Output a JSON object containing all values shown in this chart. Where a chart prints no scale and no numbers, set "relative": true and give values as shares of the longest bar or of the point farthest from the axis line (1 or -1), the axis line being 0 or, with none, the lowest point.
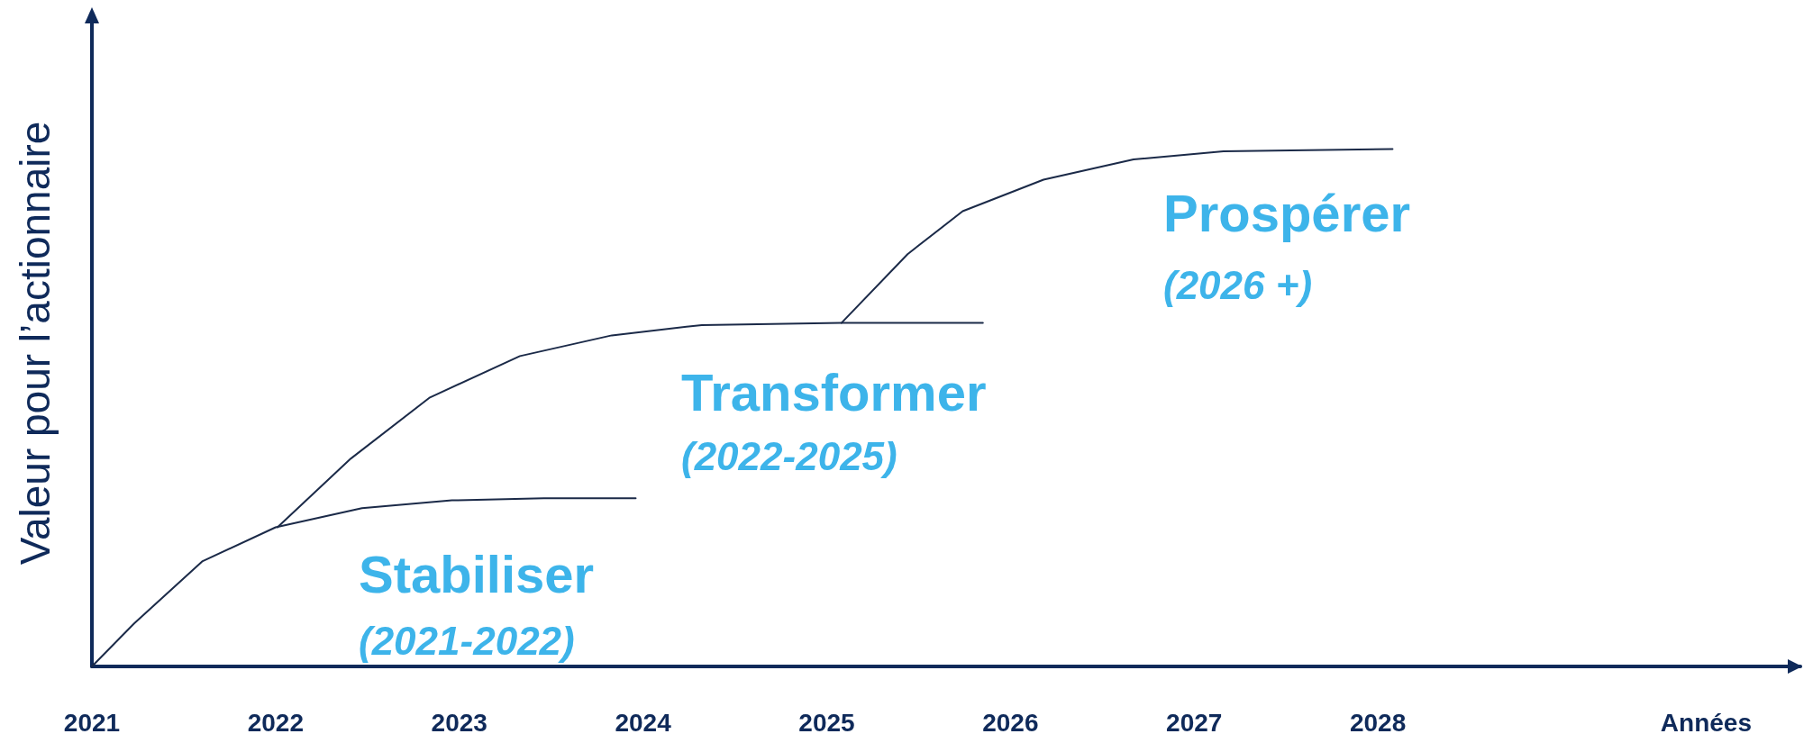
{
  "chart_data": {
    "type": "line",
    "relative": true,
    "ylabel": "Valeur pour l’actionnaire",
    "xlabel": "Années",
    "xlim": [
      2021,
      2030.3
    ],
    "xticks": [
      2021,
      2022,
      2023,
      2024,
      2025,
      2026,
      2027,
      2028
    ],
    "grid": false,
    "marker": "none",
    "line_style": "solid",
    "series": [
      {
        "color": "#1b2a48",
        "x": [
          2021,
          2021.23,
          2021.6,
          2022.0,
          2022.47,
          2022.96,
          2023.46,
          2023.96
        ],
        "values": [
          0,
          0.083,
          0.203,
          0.269,
          0.306,
          0.321,
          0.325,
          0.325
        ]
      },
      {
        "color": "#1b2a48",
        "x": [
          2022.01,
          2022.41,
          2022.84,
          2023.33,
          2023.83,
          2024.32,
          2025.08,
          2025.85
        ],
        "values": [
          0.269,
          0.402,
          0.52,
          0.6,
          0.64,
          0.66,
          0.664,
          0.664
        ]
      },
      {
        "color": "#1b2a48",
        "x": [
          2025.08,
          2025.44,
          2025.74,
          2026.18,
          2026.67,
          2027.16,
          2028.08
        ],
        "values": [
          0.664,
          0.797,
          0.88,
          0.941,
          0.98,
          0.996,
          1
        ]
      }
    ],
    "annotations": [
      "Stabiliser",
      "(2021-2022)",
      "Transformer",
      "(2022-2025)",
      "Prospérer",
      "(2026 +)"
    ]
  }
}
